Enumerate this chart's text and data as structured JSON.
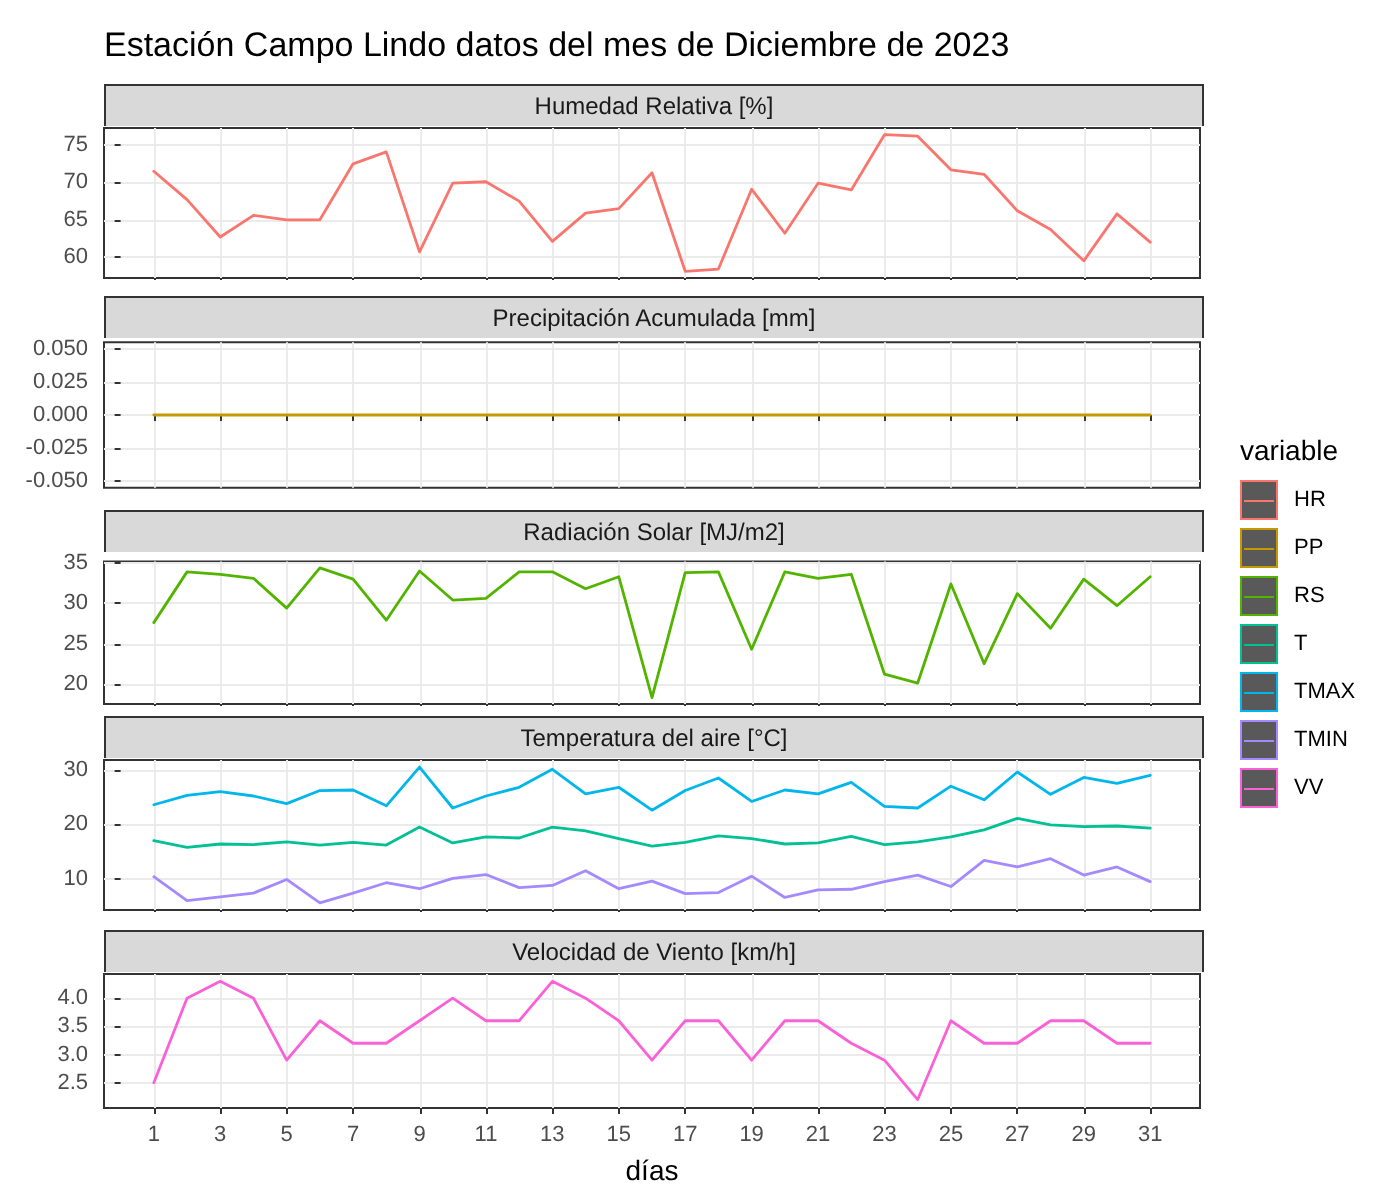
{
  "chart_data": [
    {
      "type": "line",
      "title": "Estación Campo Lindo datos del mes de Diciembre de 2023",
      "subtitle": "Humedad Relativa [%]",
      "x": [
        1,
        2,
        3,
        4,
        5,
        6,
        7,
        8,
        9,
        10,
        11,
        12,
        13,
        14,
        15,
        16,
        17,
        18,
        19,
        20,
        21,
        22,
        23,
        24,
        25,
        26,
        27,
        28,
        29,
        30,
        31
      ],
      "xlim": [
        -0.5,
        32.5
      ],
      "xticks": [
        1,
        3,
        5,
        7,
        9,
        11,
        13,
        15,
        17,
        19,
        21,
        23,
        25,
        27,
        29,
        31
      ],
      "ylim": [
        57.2,
        77.3
      ],
      "yticks": [
        60,
        65,
        70,
        75
      ],
      "grid": true,
      "tick_labels": "y",
      "series": [
        {
          "name": "HR",
          "color": "#f8766d",
          "values": [
            71.5,
            67.7,
            62.7,
            65.6,
            65.0,
            65.0,
            72.5,
            74.1,
            60.7,
            69.9,
            70.1,
            67.5,
            62.1,
            65.9,
            66.5,
            71.3,
            58.1,
            58.4,
            69.1,
            63.2,
            69.9,
            69.0,
            76.4,
            76.2,
            71.7,
            71.1,
            66.2,
            63.7,
            59.5,
            65.8,
            62.0
          ]
        }
      ]
    },
    {
      "type": "line",
      "subtitle": "Precipitación Acumulada [mm]",
      "x": [
        1,
        2,
        3,
        4,
        5,
        6,
        7,
        8,
        9,
        10,
        11,
        12,
        13,
        14,
        15,
        16,
        17,
        18,
        19,
        20,
        21,
        22,
        23,
        24,
        25,
        26,
        27,
        28,
        29,
        30,
        31
      ],
      "xlim": [
        -0.5,
        32.5
      ],
      "xticks": [
        1,
        3,
        5,
        7,
        9,
        11,
        13,
        15,
        17,
        19,
        21,
        23,
        25,
        27,
        29,
        31
      ],
      "ylim": [
        -0.055,
        0.055
      ],
      "yticks": [
        {
          "value": -0.05,
          "label": "-0.050"
        },
        {
          "value": -0.025,
          "label": "-0.025"
        },
        {
          "value": 0,
          "label": "0.000"
        },
        {
          "value": 0.025,
          "label": "0.025"
        },
        {
          "value": 0.05,
          "label": "0.050"
        }
      ],
      "grid": true,
      "tick_labels": "y",
      "series": [
        {
          "name": "PP",
          "color": "#c49a00",
          "values": [
            0,
            0,
            0,
            0,
            0,
            0,
            0,
            0,
            0,
            0,
            0,
            0,
            0,
            0,
            0,
            0,
            0,
            0,
            0,
            0,
            0,
            0,
            0,
            0,
            0,
            0,
            0,
            0,
            0,
            0,
            0
          ]
        }
      ]
    },
    {
      "type": "line",
      "subtitle": "Radiación Solar [MJ/m2]",
      "x": [
        1,
        2,
        3,
        4,
        5,
        6,
        7,
        8,
        9,
        10,
        11,
        12,
        13,
        14,
        15,
        16,
        17,
        18,
        19,
        20,
        21,
        22,
        23,
        24,
        25,
        26,
        27,
        28,
        29,
        30,
        31
      ],
      "xlim": [
        -0.5,
        32.5
      ],
      "xticks": [
        1,
        3,
        5,
        7,
        9,
        11,
        13,
        15,
        17,
        19,
        21,
        23,
        25,
        27,
        29,
        31
      ],
      "ylim": [
        17.5,
        35.2
      ],
      "yticks": [
        20,
        25,
        30,
        35
      ],
      "grid": true,
      "tick_labels": "y",
      "legend": "right",
      "legend_title": "variable",
      "series": [
        {
          "name": "RS",
          "color": "#53b400",
          "values": [
            27.6,
            33.9,
            33.6,
            33.1,
            29.4,
            34.4,
            33.0,
            27.9,
            34.0,
            30.4,
            30.6,
            33.9,
            33.9,
            31.8,
            33.3,
            18.3,
            33.8,
            33.9,
            24.3,
            33.9,
            33.1,
            33.6,
            21.2,
            20.1,
            32.4,
            22.5,
            31.2,
            26.9,
            33.0,
            29.7,
            33.3
          ]
        }
      ]
    },
    {
      "type": "line",
      "subtitle": "Temperatura del aire [°C]",
      "x": [
        1,
        2,
        3,
        4,
        5,
        6,
        7,
        8,
        9,
        10,
        11,
        12,
        13,
        14,
        15,
        16,
        17,
        18,
        19,
        20,
        21,
        22,
        23,
        24,
        25,
        26,
        27,
        28,
        29,
        30,
        31
      ],
      "xlim": [
        -0.5,
        32.5
      ],
      "xticks": [
        1,
        3,
        5,
        7,
        9,
        11,
        13,
        15,
        17,
        19,
        21,
        23,
        25,
        27,
        29,
        31
      ],
      "ylim": [
        4.3,
        31.8
      ],
      "yticks": [
        10,
        20,
        30
      ],
      "grid": true,
      "tick_labels": "y",
      "series": [
        {
          "name": "T",
          "color": "#00c094",
          "values": [
            17.0,
            15.8,
            16.4,
            16.3,
            16.8,
            16.2,
            16.7,
            16.2,
            19.5,
            16.6,
            17.7,
            17.5,
            19.5,
            18.8,
            17.4,
            16.0,
            16.7,
            17.9,
            17.4,
            16.4,
            16.6,
            17.8,
            16.3,
            16.8,
            17.7,
            19.0,
            21.1,
            19.9,
            19.6,
            19.7,
            19.3
          ]
        },
        {
          "name": "TMAX",
          "color": "#00b6eb",
          "values": [
            23.6,
            25.3,
            26.0,
            25.2,
            23.8,
            26.2,
            26.3,
            23.4,
            30.5,
            23.0,
            25.2,
            26.8,
            30.1,
            25.6,
            26.8,
            22.6,
            26.2,
            28.5,
            24.2,
            26.3,
            25.6,
            27.7,
            23.3,
            23.0,
            27.0,
            24.5,
            29.6,
            25.5,
            28.6,
            27.5,
            29.0
          ]
        },
        {
          "name": "TMIN",
          "color": "#a58aff",
          "values": [
            10.4,
            6.0,
            6.7,
            7.4,
            9.9,
            5.6,
            7.4,
            9.3,
            8.2,
            10.1,
            10.8,
            8.4,
            8.8,
            11.5,
            8.2,
            9.6,
            7.3,
            7.5,
            10.5,
            6.6,
            8.0,
            8.1,
            9.5,
            10.7,
            8.6,
            13.4,
            12.2,
            13.7,
            10.7,
            12.2,
            9.5
          ]
        }
      ]
    },
    {
      "type": "line",
      "subtitle": "Velocidad de Viento [km/h]",
      "xlabel": "días",
      "x": [
        1,
        2,
        3,
        4,
        5,
        6,
        7,
        8,
        9,
        10,
        11,
        12,
        13,
        14,
        15,
        16,
        17,
        18,
        19,
        20,
        21,
        22,
        23,
        24,
        25,
        26,
        27,
        28,
        29,
        30,
        31
      ],
      "xlim": [
        -0.5,
        32.5
      ],
      "xticks": [
        1,
        3,
        5,
        7,
        9,
        11,
        13,
        15,
        17,
        19,
        21,
        23,
        25,
        27,
        29,
        31
      ],
      "ylim": [
        2.05,
        4.43
      ],
      "yticks": [
        {
          "value": 2.5,
          "label": "2.5"
        },
        {
          "value": 3,
          "label": "3.0"
        },
        {
          "value": 3.5,
          "label": "3.5"
        },
        {
          "value": 4,
          "label": "4.0"
        }
      ],
      "grid": true,
      "series": [
        {
          "name": "VV",
          "color": "#fb61d7",
          "values": [
            2.5,
            4.0,
            4.3,
            4.0,
            2.9,
            3.6,
            3.2,
            3.2,
            3.6,
            4.0,
            3.6,
            3.6,
            4.3,
            4.0,
            3.6,
            2.9,
            3.6,
            3.6,
            2.9,
            3.6,
            3.6,
            3.2,
            2.9,
            2.2,
            3.6,
            3.2,
            3.2,
            3.6,
            3.6,
            3.2,
            3.2
          ]
        }
      ]
    }
  ]
}
